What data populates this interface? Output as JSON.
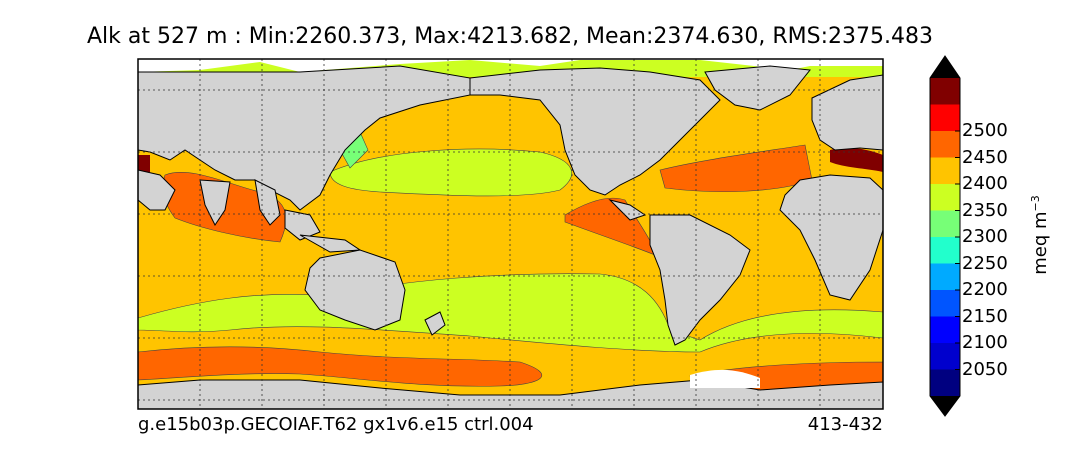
{
  "title": "Alk at 527 m : Min:2260.373, Max:4213.682, Mean:2374.630, RMS:2375.483",
  "footer": {
    "case": "g.e15b03p.GECOIAF.T62 gx1v6.e15 ctrl.004",
    "period": "413-432"
  },
  "colorbar": {
    "unit": "meq m",
    "unit_exponent": "−3",
    "ticks": [
      "2050",
      "2100",
      "2150",
      "2200",
      "2250",
      "2300",
      "2350",
      "2400",
      "2450",
      "2500"
    ],
    "bins": [
      {
        "color": "#000080"
      },
      {
        "color": "#0000cd"
      },
      {
        "color": "#0000ff"
      },
      {
        "color": "#0055ff"
      },
      {
        "color": "#00aaff"
      },
      {
        "color": "#22ffcc"
      },
      {
        "color": "#77ff77"
      },
      {
        "color": "#ccff22"
      },
      {
        "color": "#ffc400"
      },
      {
        "color": "#ff6600"
      },
      {
        "color": "#ff0000"
      },
      {
        "color": "#800000"
      }
    ],
    "extend": "both"
  },
  "map": {
    "projection": "cylindrical",
    "gridlines": true,
    "colors": {
      "land": "#d3d3d3",
      "base": "#ffc400",
      "low": "#ccff22",
      "high": "#ff6600",
      "very_high": "#800000",
      "lowest": "#77ff77",
      "ice": "#ffffff"
    }
  }
}
